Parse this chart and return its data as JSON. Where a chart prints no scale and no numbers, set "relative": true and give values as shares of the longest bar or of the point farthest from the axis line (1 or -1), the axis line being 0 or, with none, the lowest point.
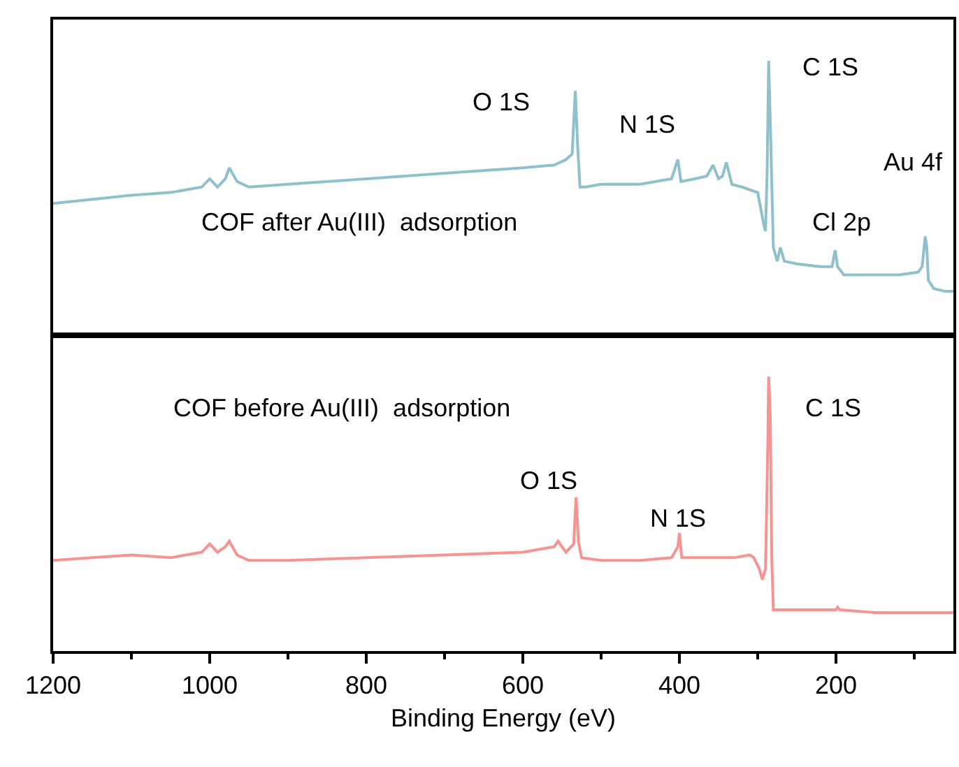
{
  "chart_data": [
    {
      "type": "line",
      "relative": true,
      "xlim": [
        1200,
        50
      ],
      "tick_labels": false,
      "x": [
        1200,
        1100,
        1050,
        1010,
        1000,
        990,
        980,
        975,
        965,
        950,
        900,
        800,
        700,
        600,
        560,
        545,
        537,
        533,
        530,
        527,
        520,
        500,
        450,
        410,
        402,
        398,
        380,
        365,
        357,
        350,
        345,
        340,
        333,
        320,
        300,
        292,
        290,
        288,
        286,
        284,
        280,
        275,
        271,
        266,
        250,
        220,
        205,
        201,
        198,
        190,
        150,
        120,
        95,
        90,
        86,
        84,
        82,
        75,
        60,
        50
      ],
      "series": [
        {
          "name": "COF after Au(III)  adsorption",
          "color": "#8fc1cc",
          "values": [
            0.48,
            0.51,
            0.52,
            0.54,
            0.57,
            0.54,
            0.57,
            0.61,
            0.56,
            0.54,
            0.55,
            0.57,
            0.59,
            0.61,
            0.62,
            0.64,
            0.66,
            0.89,
            0.69,
            0.54,
            0.54,
            0.55,
            0.55,
            0.57,
            0.64,
            0.56,
            0.57,
            0.58,
            0.62,
            0.57,
            0.58,
            0.63,
            0.55,
            0.54,
            0.52,
            0.4,
            0.38,
            0.59,
            1,
            0.79,
            0.32,
            0.27,
            0.32,
            0.27,
            0.26,
            0.25,
            0.25,
            0.31,
            0.25,
            0.22,
            0.22,
            0.22,
            0.23,
            0.25,
            0.36,
            0.32,
            0.2,
            0.17,
            0.16,
            0.16
          ]
        }
      ],
      "annotations": [
        "O 1S",
        "N 1S",
        "C 1S",
        "Cl 2p",
        "Au 4f"
      ]
    },
    {
      "type": "line",
      "relative": true,
      "xlim": [
        1200,
        50
      ],
      "tick_labels": "x",
      "xlabel": "Binding Energy (eV)",
      "xticks": [
        1200,
        {
          "value": 1100,
          "label": null
        },
        1000,
        {
          "value": 900,
          "label": null
        },
        800,
        {
          "value": 700,
          "label": null
        },
        600,
        {
          "value": 500,
          "label": null
        },
        400,
        {
          "value": 300,
          "label": null
        },
        200,
        {
          "value": 100,
          "label": null
        }
      ],
      "x": [
        1200,
        1150,
        1100,
        1050,
        1010,
        1000,
        990,
        980,
        975,
        965,
        950,
        900,
        800,
        700,
        600,
        560,
        555,
        545,
        535,
        532,
        529,
        525,
        500,
        450,
        410,
        402,
        400,
        397,
        380,
        330,
        310,
        305,
        298,
        294,
        290,
        287,
        286,
        284,
        282,
        280,
        250,
        200,
        198,
        195,
        150,
        100,
        50
      ],
      "series": [
        {
          "name": "COF before Au(III)  adsorption",
          "color": "#f59490",
          "values": [
            0.33,
            0.34,
            0.35,
            0.34,
            0.36,
            0.39,
            0.36,
            0.38,
            0.4,
            0.35,
            0.33,
            0.33,
            0.34,
            0.35,
            0.36,
            0.38,
            0.4,
            0.36,
            0.39,
            0.56,
            0.4,
            0.34,
            0.33,
            0.33,
            0.34,
            0.38,
            0.43,
            0.34,
            0.34,
            0.34,
            0.35,
            0.34,
            0.3,
            0.26,
            0.3,
            0.76,
            1,
            0.86,
            0.34,
            0.15,
            0.15,
            0.15,
            0.16,
            0.15,
            0.14,
            0.14,
            0.14
          ]
        }
      ],
      "annotations": [
        "O 1S",
        "N 1S",
        "C 1S"
      ]
    }
  ]
}
